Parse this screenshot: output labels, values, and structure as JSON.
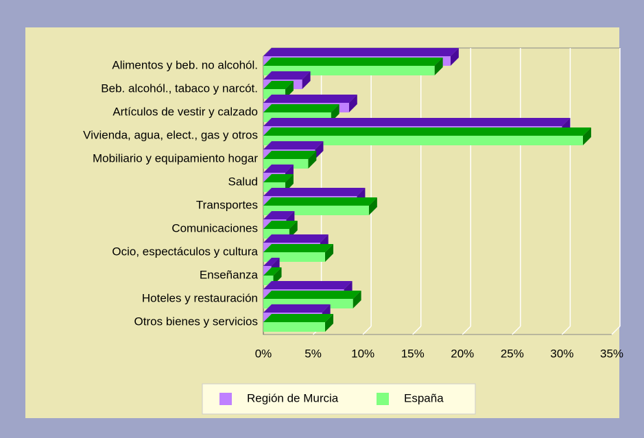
{
  "chart_data": {
    "type": "bar3d_horizontal",
    "categories": [
      "Alimentos y beb. no alcohól.",
      "Beb. alcohól., tabaco y narcót.",
      "Artículos de vestir y calzado",
      "Vivienda, agua, elect., gas y otros",
      "Mobiliario y equipamiento hogar",
      "Salud",
      "Transportes",
      "Comunicaciones",
      "Ocio, espectáculos y cultura",
      "Enseñanza",
      "Hoteles y restauración",
      "Otros bienes y servicios"
    ],
    "series": [
      {
        "name": "Región de Murcia",
        "color": "#bf80ff",
        "top_color": "#5a14b4",
        "side_color": "#4a0a9a",
        "values": [
          18.8,
          3.9,
          8.6,
          30.0,
          5.2,
          2.2,
          9.4,
          2.3,
          5.7,
          0.8,
          8.1,
          5.9
        ]
      },
      {
        "name": "España",
        "color": "#80ff80",
        "top_color": "#00a000",
        "side_color": "#007a00",
        "values": [
          17.2,
          2.2,
          6.8,
          32.1,
          4.5,
          2.2,
          10.6,
          2.6,
          6.2,
          1.0,
          9.0,
          6.2
        ]
      }
    ],
    "xlim": [
      0,
      35
    ],
    "xticks": [
      {
        "value": 0,
        "label": "0%"
      },
      {
        "value": 5,
        "label": "5%"
      },
      {
        "value": 10,
        "label": "10%"
      },
      {
        "value": 15,
        "label": "15%"
      },
      {
        "value": 20,
        "label": "20%"
      },
      {
        "value": 25,
        "label": "25%"
      },
      {
        "value": 30,
        "label": "30%"
      },
      {
        "value": 35,
        "label": "35%"
      }
    ],
    "grid": true,
    "legend": "bottom"
  }
}
